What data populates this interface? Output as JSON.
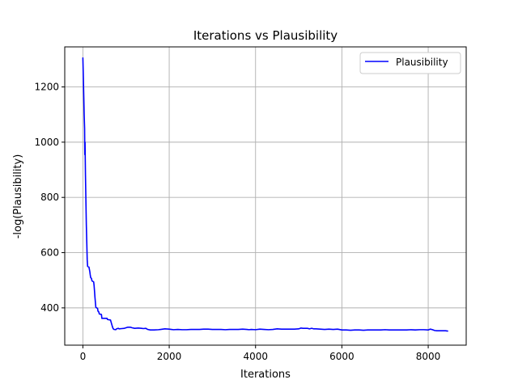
{
  "chart_data": {
    "type": "line",
    "title": "Iterations vs Plausibility",
    "xlabel": "Iterations",
    "ylabel": "-log(Plausibility)",
    "xlim": [
      -420,
      8880
    ],
    "ylim": [
      265,
      1345
    ],
    "xticks": [
      0,
      2000,
      4000,
      6000,
      8000
    ],
    "yticks": [
      400,
      600,
      800,
      1000,
      1200
    ],
    "xtick_labels": [
      "0",
      "2000",
      "4000",
      "6000",
      "8000"
    ],
    "ytick_labels": [
      "400",
      "600",
      "800",
      "1000",
      "1200"
    ],
    "grid": true,
    "legend_position": "top-right",
    "series": [
      {
        "name": "Plausibility",
        "color": "#0000ff",
        "points": [
          [
            0,
            1305
          ],
          [
            10,
            1240
          ],
          [
            20,
            1170
          ],
          [
            30,
            1100
          ],
          [
            40,
            1050
          ],
          [
            45,
            955
          ],
          [
            50,
            1000
          ],
          [
            60,
            880
          ],
          [
            70,
            790
          ],
          [
            80,
            700
          ],
          [
            90,
            640
          ],
          [
            100,
            575
          ],
          [
            110,
            550
          ],
          [
            140,
            548
          ],
          [
            150,
            540
          ],
          [
            160,
            532
          ],
          [
            170,
            520
          ],
          [
            180,
            510
          ],
          [
            200,
            506
          ],
          [
            210,
            498
          ],
          [
            250,
            494
          ],
          [
            260,
            480
          ],
          [
            270,
            460
          ],
          [
            280,
            438
          ],
          [
            290,
            420
          ],
          [
            300,
            402
          ],
          [
            340,
            398
          ],
          [
            350,
            388
          ],
          [
            370,
            385
          ],
          [
            380,
            378
          ],
          [
            430,
            376
          ],
          [
            440,
            362
          ],
          [
            560,
            362
          ],
          [
            570,
            358
          ],
          [
            640,
            356
          ],
          [
            660,
            345
          ],
          [
            680,
            334
          ],
          [
            700,
            325
          ],
          [
            720,
            322
          ],
          [
            760,
            321
          ],
          [
            780,
            324
          ],
          [
            820,
            326
          ],
          [
            840,
            324
          ],
          [
            900,
            325
          ],
          [
            960,
            326
          ],
          [
            1000,
            328
          ],
          [
            1040,
            330
          ],
          [
            1100,
            330
          ],
          [
            1140,
            328
          ],
          [
            1200,
            326
          ],
          [
            1280,
            327
          ],
          [
            1360,
            326
          ],
          [
            1400,
            325
          ],
          [
            1460,
            326
          ],
          [
            1500,
            322
          ],
          [
            1560,
            320
          ],
          [
            1650,
            320
          ],
          [
            1750,
            321
          ],
          [
            1800,
            322
          ],
          [
            1900,
            324
          ],
          [
            2000,
            323
          ],
          [
            2050,
            322
          ],
          [
            2100,
            321
          ],
          [
            2200,
            322
          ],
          [
            2300,
            321
          ],
          [
            2400,
            321
          ],
          [
            2500,
            322
          ],
          [
            2600,
            322
          ],
          [
            2700,
            322
          ],
          [
            2800,
            323
          ],
          [
            2900,
            323
          ],
          [
            3000,
            322
          ],
          [
            3100,
            322
          ],
          [
            3200,
            322
          ],
          [
            3300,
            321
          ],
          [
            3400,
            322
          ],
          [
            3500,
            322
          ],
          [
            3600,
            322
          ],
          [
            3700,
            323
          ],
          [
            3800,
            322
          ],
          [
            3850,
            321
          ],
          [
            3900,
            322
          ],
          [
            4000,
            321
          ],
          [
            4100,
            323
          ],
          [
            4200,
            322
          ],
          [
            4300,
            321
          ],
          [
            4400,
            322
          ],
          [
            4500,
            324
          ],
          [
            4600,
            323
          ],
          [
            4700,
            323
          ],
          [
            4800,
            323
          ],
          [
            4900,
            323
          ],
          [
            5000,
            324
          ],
          [
            5050,
            327
          ],
          [
            5100,
            326
          ],
          [
            5200,
            326
          ],
          [
            5250,
            324
          ],
          [
            5300,
            326
          ],
          [
            5350,
            324
          ],
          [
            5400,
            324
          ],
          [
            5500,
            323
          ],
          [
            5600,
            322
          ],
          [
            5700,
            323
          ],
          [
            5800,
            322
          ],
          [
            5900,
            323
          ],
          [
            6000,
            320
          ],
          [
            6100,
            320
          ],
          [
            6200,
            319
          ],
          [
            6300,
            320
          ],
          [
            6400,
            320
          ],
          [
            6500,
            319
          ],
          [
            6600,
            320
          ],
          [
            6700,
            320
          ],
          [
            6800,
            320
          ],
          [
            6900,
            320
          ],
          [
            7000,
            321
          ],
          [
            7100,
            320
          ],
          [
            7200,
            320
          ],
          [
            7300,
            320
          ],
          [
            7400,
            320
          ],
          [
            7500,
            320
          ],
          [
            7600,
            321
          ],
          [
            7700,
            320
          ],
          [
            7800,
            321
          ],
          [
            7900,
            321
          ],
          [
            8000,
            320
          ],
          [
            8050,
            323
          ],
          [
            8100,
            321
          ],
          [
            8150,
            318
          ],
          [
            8200,
            317
          ],
          [
            8300,
            317
          ],
          [
            8400,
            317
          ],
          [
            8450,
            316
          ]
        ]
      }
    ]
  }
}
